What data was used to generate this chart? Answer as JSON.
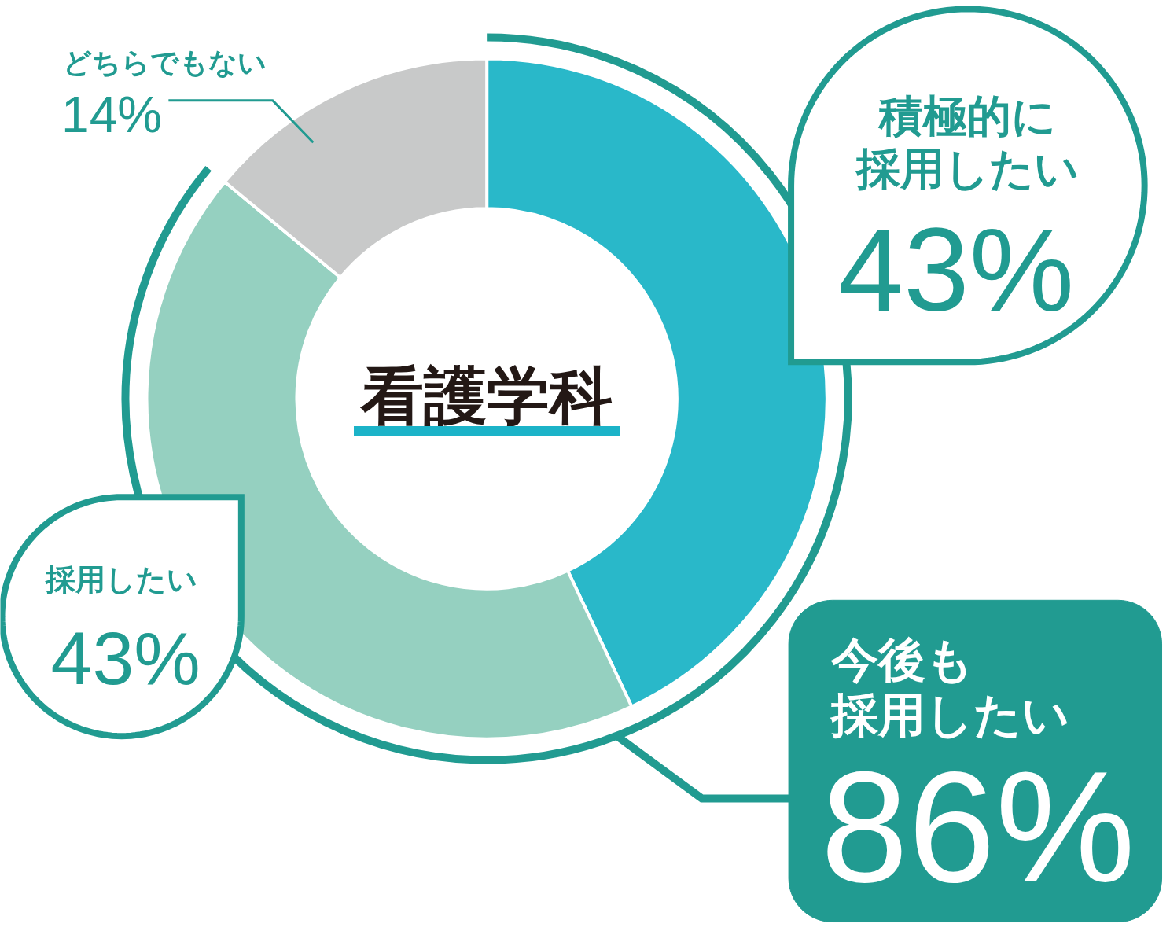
{
  "chart_data": {
    "type": "donut",
    "title": "看護学科",
    "categories": [
      "積極的に採用したい",
      "採用したい",
      "どちらでもない"
    ],
    "values": [
      43,
      43,
      14
    ],
    "colors": [
      "#29b8c9",
      "#95d0c0",
      "#c8c9c9"
    ],
    "value_labels": [
      "43%",
      "43%",
      "14%"
    ],
    "annotations": [
      "今後も採用したい",
      "86%"
    ]
  }
}
